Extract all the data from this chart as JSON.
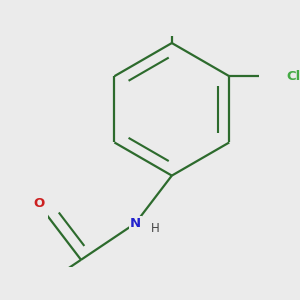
{
  "bg_color": "#ebebeb",
  "bond_color": "#2d6b2d",
  "bond_width": 1.6,
  "dbo": 0.055,
  "atoms": {
    "Br": {
      "color": "#cc7700",
      "fontsize": 9.5
    },
    "Cl": {
      "color": "#44aa44",
      "fontsize": 9.5
    },
    "N": {
      "color": "#2222cc",
      "fontsize": 9.5
    },
    "H": {
      "color": "#444444",
      "fontsize": 8.5
    },
    "O": {
      "color": "#cc2020",
      "fontsize": 9.5
    },
    "F": {
      "color": "#cc22cc",
      "fontsize": 9.5
    }
  }
}
